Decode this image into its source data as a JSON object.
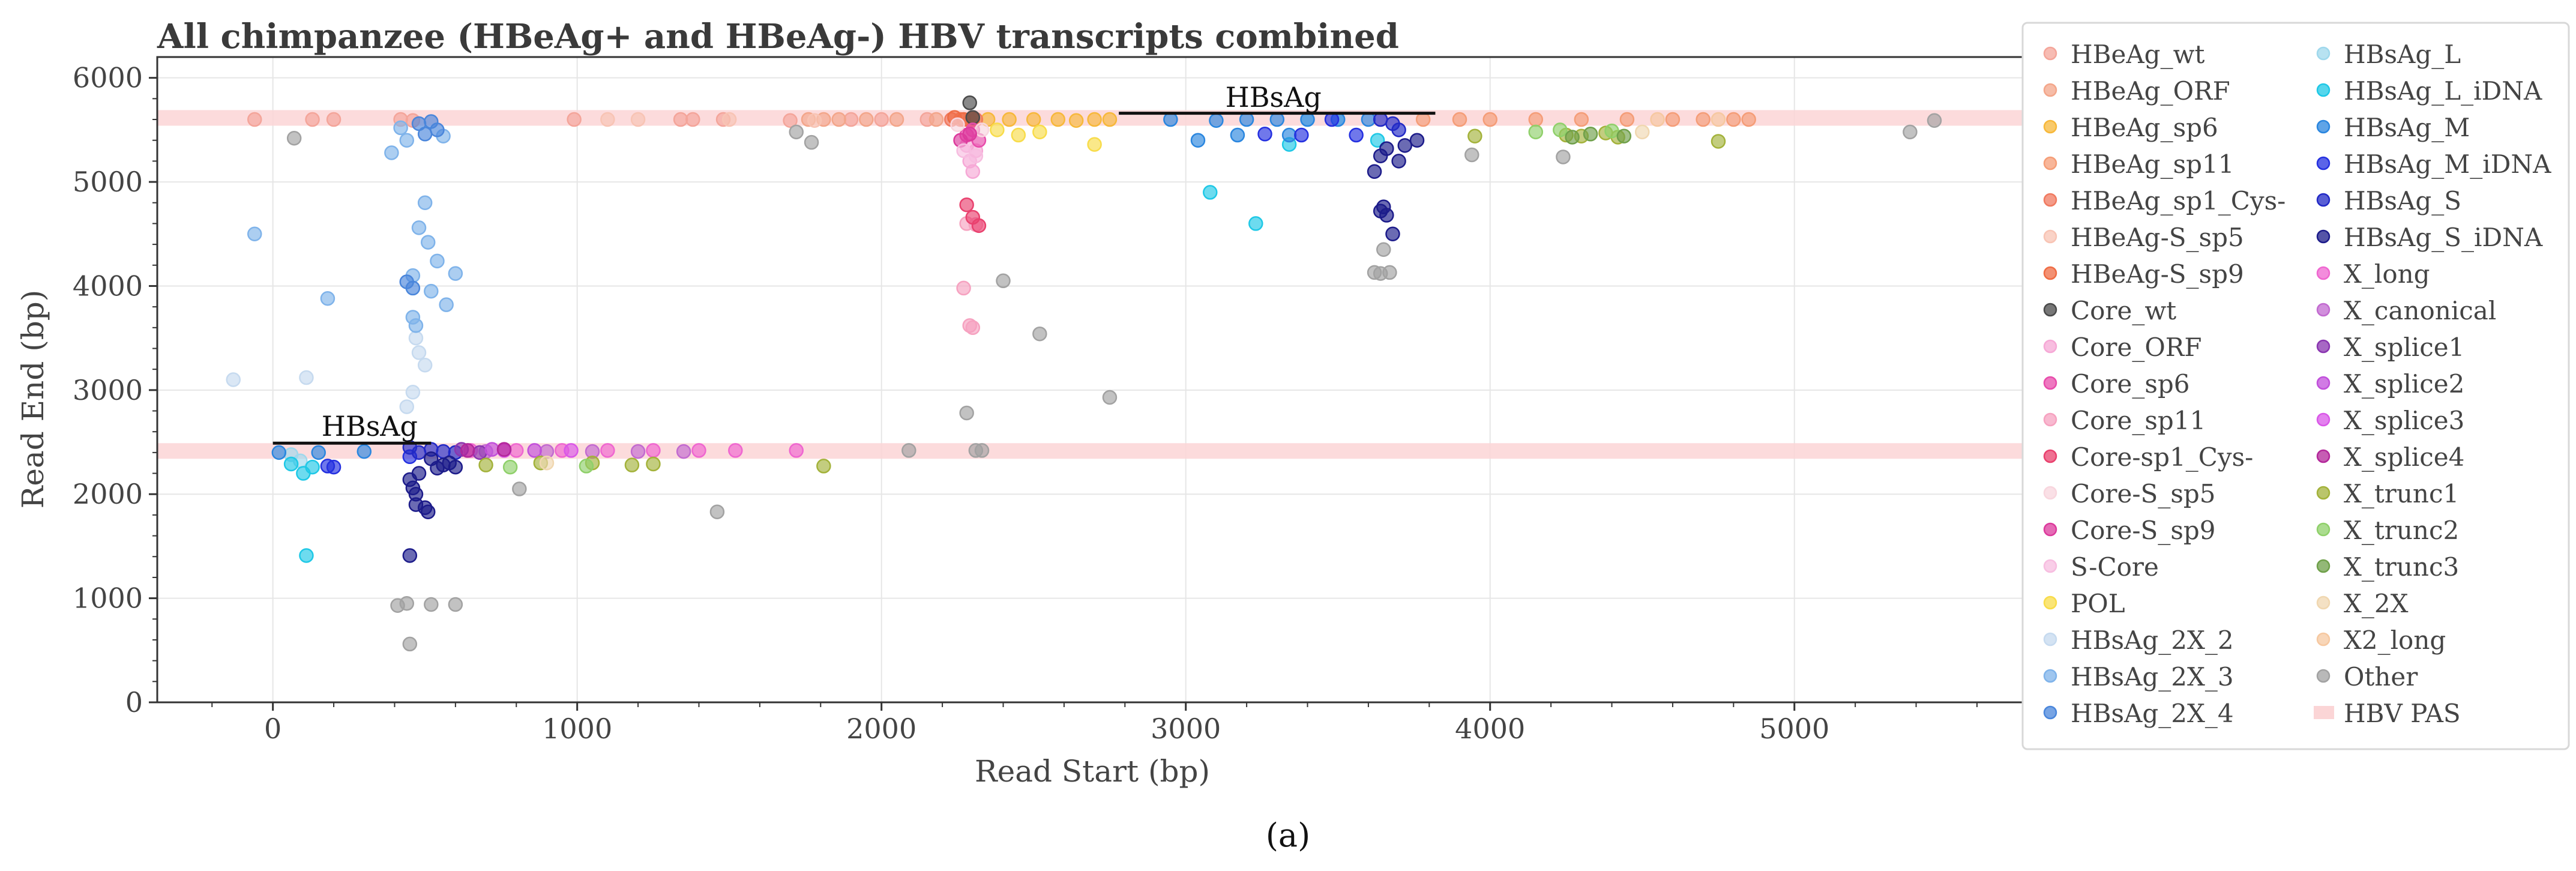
{
  "chart_data": {
    "type": "scatter",
    "title": "All chimpanzee (HBeAg+ and HBeAg-) HBV transcripts combined",
    "xlabel": "Read Start (bp)",
    "ylabel": "Read End (bp)",
    "xlim": [
      -380,
      5750
    ],
    "ylim": [
      0,
      6200
    ],
    "xticks": [
      0,
      1000,
      2000,
      3000,
      4000,
      5000
    ],
    "yticks": [
      0,
      1000,
      2000,
      3000,
      4000,
      5000,
      6000
    ],
    "grid": true,
    "legend_position": "right",
    "caption": "(a)",
    "annotations": [
      {
        "text": "HBsAg",
        "x": 160,
        "y": 2560,
        "line_x": [
          0,
          520
        ],
        "line_y": 2490
      },
      {
        "text": "HBsAg",
        "x": 3130,
        "y": 5720,
        "line_x": [
          2780,
          3820
        ],
        "line_y": 5660
      }
    ],
    "pas_bands": [
      {
        "name": "HBV PAS",
        "y_range": [
          5540,
          5690
        ]
      },
      {
        "name": "HBV PAS",
        "y_range": [
          2340,
          2490
        ]
      }
    ],
    "series": [
      {
        "name": "HBeAg_wt",
        "color": "#f4a59a",
        "points": [
          [
            -60,
            5600
          ],
          [
            130,
            5600
          ],
          [
            200,
            5600
          ],
          [
            420,
            5600
          ],
          [
            460,
            5590
          ],
          [
            990,
            5600
          ],
          [
            1340,
            5600
          ],
          [
            1380,
            5600
          ],
          [
            1480,
            5600
          ],
          [
            1700,
            5590
          ],
          [
            1900,
            5600
          ],
          [
            2000,
            5600
          ],
          [
            2150,
            5600
          ],
          [
            2300,
            5600
          ]
        ]
      },
      {
        "name": "HBeAg_ORF",
        "color": "#f3a68a",
        "points": [
          [
            1760,
            5600
          ],
          [
            1810,
            5600
          ],
          [
            1860,
            5600
          ],
          [
            1950,
            5600
          ],
          [
            2050,
            5600
          ],
          [
            2180,
            5600
          ],
          [
            2260,
            5600
          ],
          [
            2300,
            5590
          ]
        ]
      },
      {
        "name": "HBeAg_sp6",
        "color": "#f7b83a",
        "points": [
          [
            2350,
            5600
          ],
          [
            2420,
            5600
          ],
          [
            2500,
            5600
          ],
          [
            2580,
            5600
          ],
          [
            2640,
            5590
          ],
          [
            2700,
            5600
          ],
          [
            2750,
            5600
          ]
        ]
      },
      {
        "name": "HBeAg_sp11",
        "color": "#f59d77",
        "points": [
          [
            3780,
            5600
          ],
          [
            3900,
            5600
          ],
          [
            4000,
            5600
          ],
          [
            4150,
            5600
          ],
          [
            4300,
            5600
          ],
          [
            4450,
            5600
          ],
          [
            4600,
            5600
          ],
          [
            4700,
            5600
          ],
          [
            4800,
            5600
          ],
          [
            4850,
            5600
          ]
        ]
      },
      {
        "name": "HBeAg_sp1_Cys-",
        "color": "#f07a60",
        "points": [
          [
            2230,
            5600
          ],
          [
            2260,
            5600
          ],
          [
            2290,
            5590
          ],
          [
            2310,
            5600
          ]
        ]
      },
      {
        "name": "HBeAg-S_sp5",
        "color": "#f8c4b4",
        "points": [
          [
            1100,
            5600
          ],
          [
            1200,
            5600
          ],
          [
            1500,
            5600
          ],
          [
            1780,
            5590
          ]
        ]
      },
      {
        "name": "HBeAg-S_sp9",
        "color": "#ef6c44",
        "points": [
          [
            2240,
            5620
          ],
          [
            2270,
            5600
          ],
          [
            2300,
            5610
          ]
        ]
      },
      {
        "name": "Core_wt",
        "color": "#4a4a4a",
        "points": [
          [
            2290,
            5760
          ],
          [
            2300,
            5620
          ]
        ]
      },
      {
        "name": "Core_ORF",
        "color": "#f6a8d6",
        "points": [
          [
            2280,
            5350
          ],
          [
            2290,
            5200
          ],
          [
            2300,
            5100
          ],
          [
            2310,
            5300
          ]
        ]
      },
      {
        "name": "Core_sp6",
        "color": "#e84cab",
        "points": [
          [
            2280,
            5450
          ],
          [
            2300,
            5500
          ],
          [
            2320,
            5400
          ]
        ]
      },
      {
        "name": "Core_sp11",
        "color": "#f6a2c0",
        "points": [
          [
            2270,
            3980
          ],
          [
            2280,
            4600
          ],
          [
            2290,
            3620
          ],
          [
            2300,
            3600
          ],
          [
            2310,
            4590
          ]
        ]
      },
      {
        "name": "Core-sp1_Cys-",
        "color": "#e9416e",
        "points": [
          [
            2280,
            4780
          ],
          [
            2300,
            4660
          ],
          [
            2320,
            4580
          ]
        ]
      },
      {
        "name": "Core-S_sp5",
        "color": "#f8d6de",
        "points": [
          [
            2250,
            5550
          ],
          [
            2330,
            5500
          ]
        ]
      },
      {
        "name": "Core-S_sp9",
        "color": "#dc3a9c",
        "points": [
          [
            2260,
            5400
          ],
          [
            2290,
            5460
          ]
        ]
      },
      {
        "name": "S-Core",
        "color": "#f7bde0",
        "points": [
          [
            2270,
            5300
          ],
          [
            2310,
            5250
          ]
        ]
      },
      {
        "name": "POL",
        "color": "#f8dc4a",
        "points": [
          [
            2380,
            5500
          ],
          [
            2450,
            5450
          ],
          [
            2520,
            5480
          ],
          [
            2700,
            5360
          ]
        ]
      },
      {
        "name": "HBsAg_2X_2",
        "color": "#c6daef",
        "points": [
          [
            -130,
            3100
          ],
          [
            110,
            3120
          ],
          [
            440,
            2840
          ],
          [
            470,
            3500
          ],
          [
            480,
            3360
          ],
          [
            500,
            3240
          ],
          [
            460,
            2980
          ]
        ]
      },
      {
        "name": "HBsAg_2X_3",
        "color": "#7fb3ea",
        "points": [
          [
            -60,
            4500
          ],
          [
            180,
            3880
          ],
          [
            390,
            5280
          ],
          [
            420,
            5520
          ],
          [
            440,
            5400
          ],
          [
            460,
            4100
          ],
          [
            470,
            3620
          ],
          [
            480,
            4560
          ],
          [
            500,
            4800
          ],
          [
            510,
            4420
          ],
          [
            520,
            3950
          ],
          [
            540,
            4240
          ],
          [
            560,
            5440
          ],
          [
            570,
            3820
          ],
          [
            600,
            4120
          ],
          [
            460,
            3700
          ]
        ]
      },
      {
        "name": "HBsAg_2X_4",
        "color": "#4a86db",
        "points": [
          [
            440,
            4040
          ],
          [
            460,
            3980
          ],
          [
            480,
            5560
          ],
          [
            500,
            5460
          ],
          [
            520,
            5580
          ],
          [
            540,
            5500
          ]
        ]
      },
      {
        "name": "HBsAg_L",
        "color": "#9fd8ec",
        "points": [
          [
            60,
            2380
          ],
          [
            90,
            2320
          ],
          [
            3400,
            5600
          ],
          [
            3500,
            5600
          ]
        ]
      },
      {
        "name": "HBsAg_L_iDNA",
        "color": "#1ec8e6",
        "points": [
          [
            60,
            2290
          ],
          [
            100,
            2200
          ],
          [
            110,
            1410
          ],
          [
            130,
            2260
          ],
          [
            3080,
            4900
          ],
          [
            3230,
            4600
          ],
          [
            3340,
            5360
          ],
          [
            3630,
            5400
          ]
        ]
      },
      {
        "name": "HBsAg_M",
        "color": "#2a86df",
        "points": [
          [
            20,
            2400
          ],
          [
            150,
            2400
          ],
          [
            300,
            2410
          ],
          [
            2950,
            5600
          ],
          [
            3100,
            5590
          ],
          [
            3200,
            5600
          ],
          [
            3300,
            5600
          ],
          [
            3400,
            5600
          ],
          [
            3500,
            5600
          ],
          [
            3600,
            5600
          ],
          [
            3170,
            5450
          ],
          [
            3340,
            5450
          ],
          [
            3040,
            5400
          ]
        ]
      },
      {
        "name": "HBsAg_M_iDNA",
        "color": "#2430e0",
        "points": [
          [
            180,
            2270
          ],
          [
            200,
            2260
          ],
          [
            450,
            2360
          ],
          [
            3260,
            5460
          ],
          [
            3380,
            5450
          ],
          [
            3480,
            5600
          ],
          [
            3560,
            5450
          ]
        ]
      },
      {
        "name": "HBsAg_S",
        "color": "#2229c6",
        "points": [
          [
            450,
            2450
          ],
          [
            480,
            2400
          ],
          [
            520,
            2430
          ],
          [
            560,
            2410
          ],
          [
            600,
            2400
          ],
          [
            3640,
            5600
          ],
          [
            3680,
            5560
          ],
          [
            3700,
            5500
          ]
        ]
      },
      {
        "name": "HBsAg_S_iDNA",
        "color": "#1c1b8a",
        "points": [
          [
            450,
            1410
          ],
          [
            460,
            2060
          ],
          [
            470,
            1900
          ],
          [
            480,
            2200
          ],
          [
            500,
            1870
          ],
          [
            510,
            1830
          ],
          [
            520,
            2340
          ],
          [
            540,
            2250
          ],
          [
            560,
            2280
          ],
          [
            580,
            2300
          ],
          [
            600,
            2260
          ],
          [
            450,
            2140
          ],
          [
            470,
            2000
          ],
          [
            3620,
            5100
          ],
          [
            3640,
            4720
          ],
          [
            3650,
            4760
          ],
          [
            3660,
            4680
          ],
          [
            3680,
            4500
          ],
          [
            3700,
            5200
          ],
          [
            3720,
            5350
          ],
          [
            3760,
            5400
          ],
          [
            3640,
            5250
          ],
          [
            3660,
            5320
          ]
        ]
      },
      {
        "name": "X_long",
        "color": "#ef66d0",
        "points": [
          [
            650,
            2420
          ],
          [
            800,
            2420
          ],
          [
            950,
            2420
          ],
          [
            1100,
            2420
          ],
          [
            1250,
            2420
          ],
          [
            1400,
            2420
          ],
          [
            1520,
            2420
          ],
          [
            1720,
            2420
          ]
        ]
      },
      {
        "name": "X_canonical",
        "color": "#c26ad0",
        "points": [
          [
            700,
            2410
          ],
          [
            900,
            2410
          ],
          [
            1050,
            2410
          ],
          [
            1200,
            2410
          ],
          [
            1350,
            2410
          ]
        ]
      },
      {
        "name": "X_splice1",
        "color": "#8a35b0",
        "points": [
          [
            620,
            2430
          ],
          [
            680,
            2400
          ]
        ]
      },
      {
        "name": "X_splice2",
        "color": "#c14fdb",
        "points": [
          [
            720,
            2430
          ],
          [
            860,
            2420
          ]
        ]
      },
      {
        "name": "X_splice3",
        "color": "#d957e8",
        "points": [
          [
            760,
            2420
          ],
          [
            980,
            2420
          ]
        ]
      },
      {
        "name": "X_splice4",
        "color": "#b3279a",
        "points": [
          [
            640,
            2420
          ],
          [
            760,
            2430
          ]
        ]
      },
      {
        "name": "X_trunc1",
        "color": "#a3b23a",
        "points": [
          [
            700,
            2280
          ],
          [
            880,
            2300
          ],
          [
            1050,
            2300
          ],
          [
            1180,
            2280
          ],
          [
            1250,
            2290
          ],
          [
            1810,
            2270
          ],
          [
            3950,
            5440
          ],
          [
            4250,
            5450
          ],
          [
            4300,
            5440
          ],
          [
            4380,
            5470
          ],
          [
            4420,
            5430
          ],
          [
            4750,
            5390
          ]
        ]
      },
      {
        "name": "X_trunc2",
        "color": "#8fd06a",
        "points": [
          [
            780,
            2260
          ],
          [
            1030,
            2270
          ],
          [
            4150,
            5480
          ],
          [
            4230,
            5500
          ],
          [
            4400,
            5490
          ]
        ]
      },
      {
        "name": "X_trunc3",
        "color": "#6fa04a",
        "points": [
          [
            4270,
            5430
          ],
          [
            4330,
            5460
          ],
          [
            4440,
            5440
          ]
        ]
      },
      {
        "name": "X_2X",
        "color": "#f0d7b0",
        "points": [
          [
            900,
            2300
          ],
          [
            4500,
            5480
          ]
        ]
      },
      {
        "name": "X2_long",
        "color": "#f6c8a0",
        "points": [
          [
            4550,
            5600
          ],
          [
            4750,
            5600
          ]
        ]
      },
      {
        "name": "Other",
        "color": "#a2a2a2",
        "points": [
          [
            70,
            5420
          ],
          [
            410,
            930
          ],
          [
            440,
            950
          ],
          [
            450,
            560
          ],
          [
            520,
            940
          ],
          [
            600,
            940
          ],
          [
            810,
            2050
          ],
          [
            1460,
            1830
          ],
          [
            1770,
            5380
          ],
          [
            1720,
            5480
          ],
          [
            2090,
            2420
          ],
          [
            2280,
            2780
          ],
          [
            2310,
            2420
          ],
          [
            2330,
            2420
          ],
          [
            2400,
            4050
          ],
          [
            2520,
            3540
          ],
          [
            2750,
            2930
          ],
          [
            3620,
            4130
          ],
          [
            3640,
            4120
          ],
          [
            3650,
            4350
          ],
          [
            3670,
            4130
          ],
          [
            3940,
            5260
          ],
          [
            4240,
            5240
          ],
          [
            5380,
            5480
          ],
          [
            5460,
            5590
          ]
        ]
      },
      {
        "name": "HBV PAS",
        "color": "#fbd5d6",
        "points": []
      }
    ]
  }
}
